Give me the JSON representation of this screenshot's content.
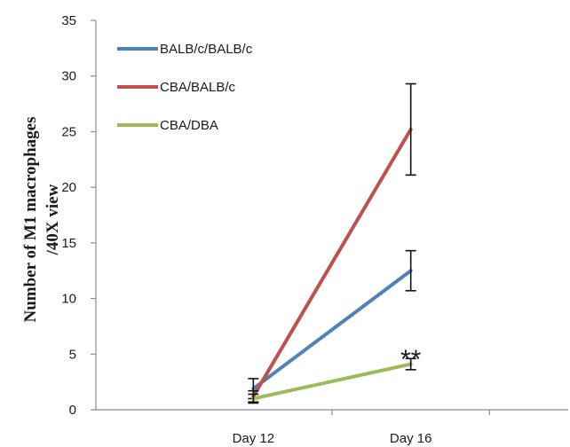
{
  "chart_data": {
    "type": "line",
    "categories": [
      "Day 12",
      "Day 16"
    ],
    "ylabel": [
      "Number of M1 macrophages",
      "/40X view"
    ],
    "ylim": [
      0,
      35
    ],
    "yticks": [
      0,
      5,
      10,
      15,
      20,
      25,
      30,
      35
    ],
    "grid": false,
    "legend_position": "top-left",
    "series": [
      {
        "name": "BALB/c/BALB/c",
        "color": "#4f81bd",
        "values": [
          1.9,
          12.5
        ],
        "error": [
          0.9,
          1.8
        ]
      },
      {
        "name": "CBA/BALB/c",
        "color": "#c0504d",
        "values": [
          1.2,
          25.2
        ],
        "error": [
          0.5,
          4.1
        ]
      },
      {
        "name": "CBA/DBA",
        "color": "#9bbb59",
        "values": [
          1.0,
          4.1
        ],
        "error": [
          0.4,
          0.5
        ]
      }
    ],
    "annotations": [
      {
        "text": "**",
        "category": "Day 16",
        "y": 5.2
      }
    ]
  }
}
